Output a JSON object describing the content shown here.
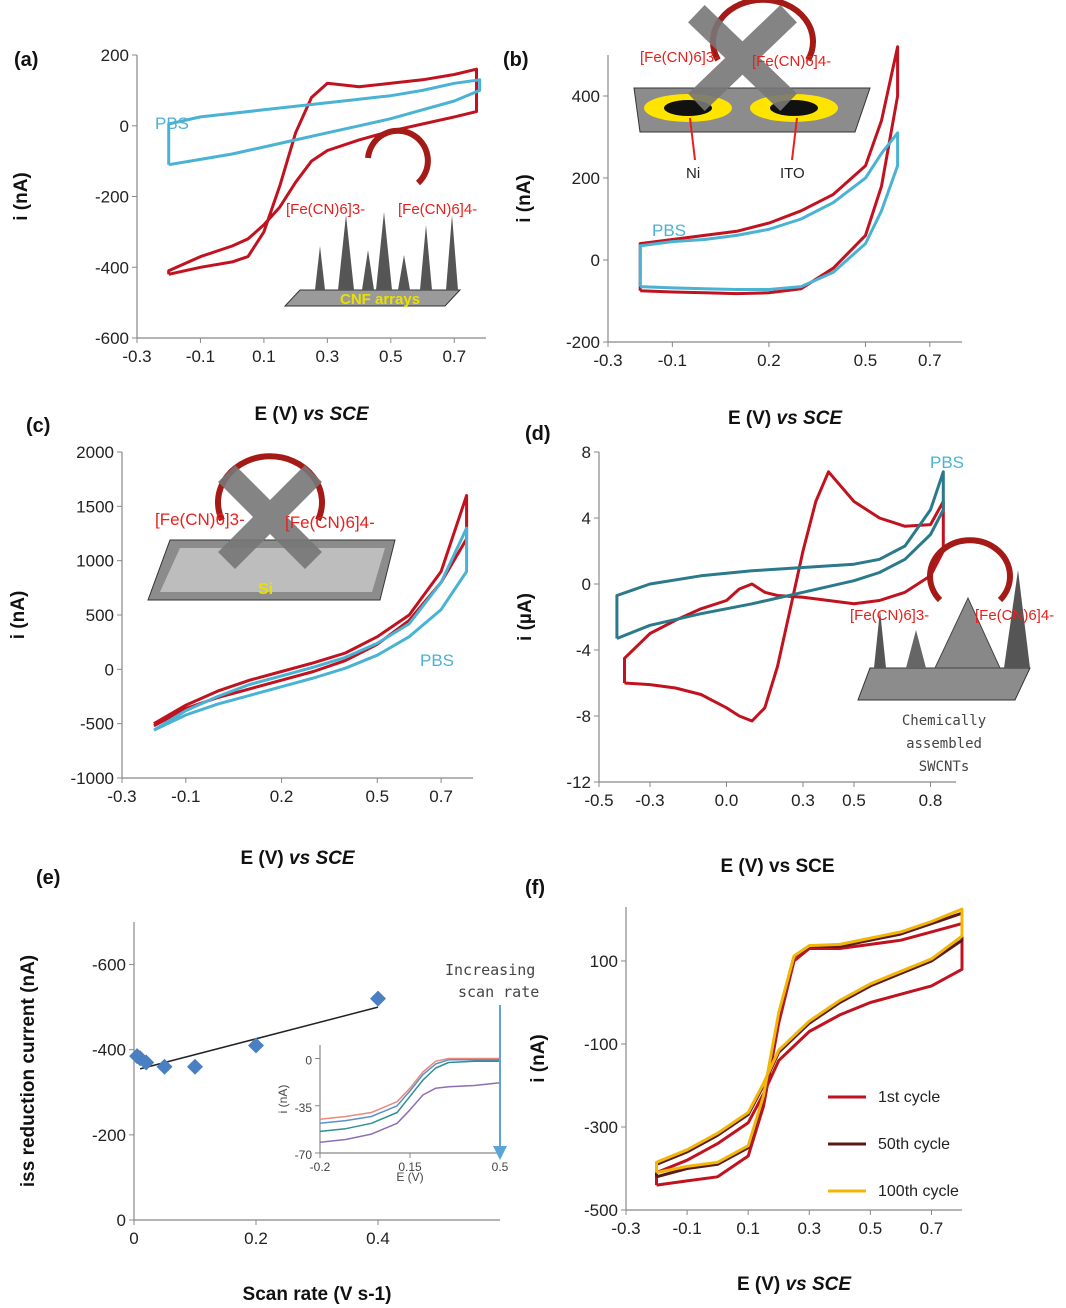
{
  "colors": {
    "red": "#c1121f",
    "cyan": "#4ab3d4",
    "teal": "#2b7a8c",
    "blue_marker": "#4a7fc1",
    "brown": "#5a1a14",
    "yellow": "#f2b705",
    "inset_purple": "#8c6fb5",
    "inset_orange": "#e88a7c",
    "inset_blue": "#5d8fcf",
    "inset_teal": "#2f8f8f",
    "label_red": "#e8201d"
  },
  "panels": {
    "a": {
      "label": "(a)",
      "xlabel_main": "E (V) ",
      "xlabel_ital": "vs SCE",
      "ylabel": "i (nA)",
      "xticks": [
        "-0.3",
        "-0.1",
        "0.1",
        "0.3",
        "0.5",
        "0.7"
      ],
      "yticks": [
        "200",
        "0",
        "-200",
        "-400",
        "-600"
      ],
      "pbs_label": "PBS",
      "species_left": "[Fe(CN)6]3-",
      "species_right": "[Fe(CN)6]4-",
      "device_label": "CNF arrays"
    },
    "b": {
      "label": "(b)",
      "xlabel_main": "E (V) ",
      "xlabel_ital": "vs SCE",
      "ylabel": "i (nA)",
      "xticks": [
        "-0.3",
        "-0.1",
        "0.2",
        "0.5",
        "0.7"
      ],
      "yticks": [
        "400",
        "200",
        "0",
        "-200"
      ],
      "pbs_label": "PBS",
      "species_left": "[Fe(CN)6]3-",
      "species_right": "[Fe(CN)6]4-",
      "ni_label": "Ni",
      "ito_label": "ITO"
    },
    "c": {
      "label": "(c)",
      "xlabel_main": "E (V) ",
      "xlabel_ital": "vs SCE",
      "ylabel": "i (nA)",
      "xticks": [
        "-0.3",
        "-0.1",
        "0.2",
        "0.5",
        "0.7"
      ],
      "yticks": [
        "2000",
        "1500",
        "1000",
        "500",
        "0",
        "-500",
        "-1000"
      ],
      "pbs_label": "PBS",
      "species_left": "[Fe(CN)6]3-",
      "species_right": "[Fe(CN)6]4-",
      "device_label": "Si"
    },
    "d": {
      "label": "(d)",
      "xlabel": "E (V) vs SCE",
      "ylabel": "i (µA)",
      "xticks": [
        "-0.5",
        "-0.3",
        "0.0",
        "0.3",
        "0.5",
        "0.8"
      ],
      "yticks": [
        "8",
        "4",
        "0",
        "-4",
        "-8",
        "-12"
      ],
      "pbs_label": "PBS",
      "species_left": "[Fe(CN)6]3-",
      "species_right": "[Fe(CN)6]4-",
      "device_label": [
        "Chemically",
        "assembled",
        "SWCNTs"
      ]
    },
    "e": {
      "label": "(e)",
      "xlabel": "Scan rate (V s-1)",
      "ylabel": "iss reduction current (nA)",
      "xticks": [
        "0",
        "0.2",
        "0.4"
      ],
      "yticks": [
        "-600",
        "-400",
        "-200",
        "0"
      ],
      "annotation": [
        "Increasing",
        "scan rate"
      ],
      "inset": {
        "xlabel": "E (V)",
        "ylabel": "i (nA)",
        "xticks": [
          "-0.2",
          "0.15",
          "0.5"
        ],
        "yticks": [
          "0",
          "-35",
          "-70"
        ]
      }
    },
    "f": {
      "label": "(f)",
      "xlabel_main": "E (V) ",
      "xlabel_ital": "vs SCE",
      "ylabel": "i (nA)",
      "xticks": [
        "-0.3",
        "-0.1",
        "0.1",
        "0.3",
        "0.5",
        "0.7"
      ],
      "yticks": [
        "100",
        "-100",
        "-300",
        "-500"
      ],
      "legend": [
        "1st cycle",
        "50th cycle",
        "100th cycle"
      ]
    }
  },
  "chart_data": [
    {
      "panel": "a",
      "type": "line",
      "xlabel": "E (V) vs SCE",
      "ylabel": "i (nA)",
      "xlim": [
        -0.3,
        0.8
      ],
      "ylim": [
        -600,
        200
      ],
      "series": [
        {
          "name": "",
          "color": "red",
          "x": [
            -0.2,
            -0.1,
            0.0,
            0.05,
            0.1,
            0.15,
            0.2,
            0.25,
            0.3,
            0.4,
            0.5,
            0.6,
            0.7,
            0.77,
            0.77,
            0.7,
            0.6,
            0.5,
            0.4,
            0.3,
            0.25,
            0.2,
            0.15,
            0.1,
            0.05,
            0.0,
            -0.1,
            -0.2,
            -0.2
          ],
          "y": [
            -420,
            -400,
            -385,
            -370,
            -300,
            -170,
            -20,
            80,
            120,
            110,
            120,
            130,
            145,
            160,
            40,
            25,
            5,
            -15,
            -40,
            -70,
            -100,
            -160,
            -230,
            -280,
            -320,
            -340,
            -370,
            -410,
            -420
          ]
        },
        {
          "name": "PBS",
          "color": "cyan",
          "x": [
            -0.2,
            -0.1,
            0.0,
            0.1,
            0.2,
            0.3,
            0.4,
            0.5,
            0.6,
            0.7,
            0.78,
            0.78,
            0.7,
            0.6,
            0.5,
            0.4,
            0.3,
            0.2,
            0.1,
            0.0,
            -0.1,
            -0.2,
            -0.2
          ],
          "y": [
            -110,
            -95,
            -80,
            -60,
            -40,
            -20,
            0,
            20,
            45,
            70,
            100,
            130,
            120,
            100,
            85,
            75,
            65,
            55,
            45,
            35,
            25,
            5,
            -110
          ]
        }
      ]
    },
    {
      "panel": "b",
      "type": "line",
      "xlabel": "E (V) vs SCE",
      "ylabel": "i (nA)",
      "xlim": [
        -0.3,
        0.8
      ],
      "ylim": [
        -200,
        500
      ],
      "series": [
        {
          "name": "",
          "color": "red",
          "x": [
            -0.2,
            -0.1,
            0.0,
            0.1,
            0.2,
            0.3,
            0.4,
            0.5,
            0.55,
            0.6,
            0.6,
            0.55,
            0.5,
            0.4,
            0.3,
            0.2,
            0.1,
            0.0,
            -0.1,
            -0.2,
            -0.2
          ],
          "y": [
            -75,
            -78,
            -80,
            -82,
            -80,
            -70,
            -20,
            60,
            180,
            400,
            520,
            340,
            230,
            160,
            120,
            90,
            70,
            60,
            50,
            40,
            -75
          ]
        },
        {
          "name": "PBS",
          "color": "cyan",
          "x": [
            -0.2,
            -0.1,
            0.0,
            0.1,
            0.2,
            0.3,
            0.4,
            0.5,
            0.55,
            0.6,
            0.6,
            0.55,
            0.5,
            0.4,
            0.3,
            0.2,
            0.1,
            0.0,
            -0.1,
            -0.2,
            -0.2
          ],
          "y": [
            -65,
            -68,
            -70,
            -72,
            -72,
            -65,
            -30,
            40,
            120,
            230,
            310,
            260,
            200,
            140,
            100,
            75,
            60,
            50,
            45,
            35,
            -65
          ]
        }
      ]
    },
    {
      "panel": "c",
      "type": "line",
      "xlabel": "E (V) vs SCE",
      "ylabel": "i (nA)",
      "xlim": [
        -0.3,
        0.8
      ],
      "ylim": [
        -1000,
        2000
      ],
      "series": [
        {
          "name": "",
          "color": "red",
          "x": [
            -0.2,
            -0.1,
            0.0,
            0.1,
            0.2,
            0.3,
            0.4,
            0.5,
            0.6,
            0.7,
            0.78,
            0.78,
            0.7,
            0.6,
            0.5,
            0.4,
            0.3,
            0.2,
            0.1,
            0.0,
            -0.1,
            -0.2
          ],
          "y": [
            -500,
            -330,
            -200,
            -100,
            -20,
            60,
            150,
            300,
            500,
            900,
            1600,
            1200,
            800,
            450,
            230,
            80,
            -20,
            -100,
            -180,
            -260,
            -360,
            -520
          ]
        },
        {
          "name": "PBS",
          "color": "cyan",
          "x": [
            -0.2,
            -0.1,
            0.0,
            0.1,
            0.2,
            0.3,
            0.4,
            0.5,
            0.6,
            0.7,
            0.78,
            0.78,
            0.7,
            0.6,
            0.5,
            0.4,
            0.3,
            0.2,
            0.1,
            0.0,
            -0.1,
            -0.2
          ],
          "y": [
            -560,
            -380,
            -250,
            -140,
            -60,
            20,
            110,
            240,
            420,
            800,
            1300,
            900,
            550,
            300,
            130,
            10,
            -80,
            -160,
            -240,
            -320,
            -420,
            -560
          ]
        }
      ]
    },
    {
      "panel": "d",
      "type": "line",
      "xlabel": "E (V) vs SCE",
      "ylabel": "i (µA)",
      "xlim": [
        -0.5,
        0.9
      ],
      "ylim": [
        -12,
        8
      ],
      "series": [
        {
          "name": "",
          "color": "red",
          "x": [
            -0.4,
            -0.3,
            -0.2,
            -0.1,
            0.0,
            0.05,
            0.1,
            0.15,
            0.2,
            0.25,
            0.3,
            0.35,
            0.4,
            0.5,
            0.6,
            0.7,
            0.8,
            0.85,
            0.85,
            0.8,
            0.7,
            0.6,
            0.5,
            0.4,
            0.3,
            0.2,
            0.15,
            0.1,
            0.05,
            0.0,
            -0.1,
            -0.2,
            -0.3,
            -0.4,
            -0.4
          ],
          "y": [
            -6,
            -6.1,
            -6.3,
            -6.7,
            -7.5,
            -8.0,
            -8.3,
            -7.5,
            -5.0,
            -1.5,
            2.0,
            5.0,
            6.8,
            5.0,
            4.0,
            3.5,
            3.6,
            5.0,
            2.0,
            0.5,
            -0.5,
            -1.0,
            -1.2,
            -1.0,
            -0.8,
            -0.7,
            -0.5,
            0.0,
            -0.3,
            -1.0,
            -1.5,
            -2.2,
            -3.0,
            -4.5,
            -6
          ]
        },
        {
          "name": "PBS",
          "color": "teal",
          "x": [
            -0.43,
            -0.3,
            -0.1,
            0.1,
            0.3,
            0.5,
            0.6,
            0.7,
            0.8,
            0.85,
            0.85,
            0.8,
            0.7,
            0.6,
            0.5,
            0.3,
            0.1,
            -0.1,
            -0.3,
            -0.43,
            -0.43
          ],
          "y": [
            -3.3,
            -2.5,
            -1.8,
            -1.2,
            -0.5,
            0.2,
            0.7,
            1.5,
            3.0,
            4.5,
            6.8,
            4.5,
            2.3,
            1.5,
            1.2,
            1.0,
            0.8,
            0.5,
            0.0,
            -0.7,
            -3.3
          ]
        }
      ]
    },
    {
      "panel": "e",
      "type": "scatter",
      "xlabel": "Scan rate (V s-1)",
      "ylabel": "iss reduction current (nA)",
      "xlim": [
        0,
        0.6
      ],
      "ylim": [
        0,
        -700
      ],
      "y_reversed": true,
      "points": {
        "x": [
          0.005,
          0.01,
          0.02,
          0.05,
          0.1,
          0.2,
          0.4
        ],
        "y": [
          -385,
          -380,
          -370,
          -360,
          -360,
          -410,
          -520
        ]
      },
      "trendline": {
        "x": [
          0.01,
          0.4
        ],
        "y": [
          -355,
          -500
        ]
      },
      "inset": {
        "type": "line",
        "xlim": [
          -0.2,
          0.5
        ],
        "ylim": [
          -70,
          10
        ],
        "series": [
          {
            "name": "",
            "color": "inset_orange",
            "x": [
              -0.2,
              -0.1,
              0.0,
              0.1,
              0.15,
              0.2,
              0.25,
              0.3,
              0.4,
              0.5
            ],
            "y": [
              -45,
              -43,
              -40,
              -32,
              -22,
              -10,
              -2,
              0,
              0,
              0
            ]
          },
          {
            "name": "",
            "color": "inset_blue",
            "x": [
              -0.2,
              -0.1,
              0.0,
              0.1,
              0.15,
              0.2,
              0.25,
              0.3,
              0.4,
              0.5
            ],
            "y": [
              -48,
              -46,
              -43,
              -35,
              -24,
              -12,
              -4,
              -1,
              -1,
              -1
            ]
          },
          {
            "name": "",
            "color": "inset_teal",
            "x": [
              -0.2,
              -0.1,
              0.0,
              0.1,
              0.15,
              0.2,
              0.25,
              0.3,
              0.4,
              0.5
            ],
            "y": [
              -54,
              -52,
              -48,
              -40,
              -28,
              -16,
              -7,
              -3,
              -2,
              -2
            ]
          },
          {
            "name": "",
            "color": "inset_purple",
            "x": [
              -0.2,
              -0.1,
              0.0,
              0.1,
              0.15,
              0.2,
              0.25,
              0.3,
              0.4,
              0.5
            ],
            "y": [
              -62,
              -60,
              -56,
              -48,
              -38,
              -27,
              -22,
              -21,
              -20,
              -18
            ]
          }
        ]
      }
    },
    {
      "panel": "f",
      "type": "line",
      "xlabel": "E (V) vs SCE",
      "ylabel": "i (nA)",
      "xlim": [
        -0.3,
        0.8
      ],
      "ylim": [
        -500,
        230
      ],
      "series": [
        {
          "name": "1st cycle",
          "color": "red",
          "x": [
            -0.2,
            -0.1,
            0.0,
            0.1,
            0.15,
            0.2,
            0.25,
            0.3,
            0.4,
            0.5,
            0.6,
            0.7,
            0.8,
            0.8,
            0.7,
            0.6,
            0.5,
            0.4,
            0.3,
            0.2,
            0.15,
            0.1,
            0.0,
            -0.1,
            -0.2,
            -0.2
          ],
          "y": [
            -440,
            -430,
            -420,
            -370,
            -250,
            -50,
            100,
            130,
            130,
            140,
            150,
            170,
            190,
            80,
            40,
            20,
            0,
            -30,
            -70,
            -140,
            -220,
            -290,
            -340,
            -380,
            -410,
            -440
          ]
        },
        {
          "name": "50th cycle",
          "color": "brown",
          "x": [
            -0.2,
            -0.1,
            0.0,
            0.1,
            0.15,
            0.2,
            0.25,
            0.3,
            0.4,
            0.5,
            0.6,
            0.7,
            0.8,
            0.8,
            0.7,
            0.6,
            0.5,
            0.4,
            0.3,
            0.2,
            0.15,
            0.1,
            0.0,
            -0.1,
            -0.2,
            -0.2
          ],
          "y": [
            -420,
            -400,
            -390,
            -350,
            -230,
            -30,
            110,
            135,
            135,
            150,
            165,
            190,
            215,
            150,
            100,
            70,
            40,
            0,
            -50,
            -120,
            -200,
            -270,
            -320,
            -360,
            -390,
            -420
          ]
        },
        {
          "name": "100th cycle",
          "color": "yellow",
          "x": [
            -0.2,
            -0.1,
            0.0,
            0.1,
            0.15,
            0.2,
            0.25,
            0.3,
            0.4,
            0.5,
            0.6,
            0.7,
            0.8,
            0.8,
            0.7,
            0.6,
            0.5,
            0.4,
            0.3,
            0.2,
            0.15,
            0.1,
            0.0,
            -0.1,
            -0.2,
            -0.2
          ],
          "y": [
            -410,
            -395,
            -385,
            -345,
            -225,
            -25,
            112,
            137,
            140,
            155,
            170,
            195,
            225,
            160,
            105,
            75,
            45,
            5,
            -45,
            -115,
            -195,
            -265,
            -315,
            -355,
            -385,
            -410
          ]
        }
      ]
    }
  ]
}
